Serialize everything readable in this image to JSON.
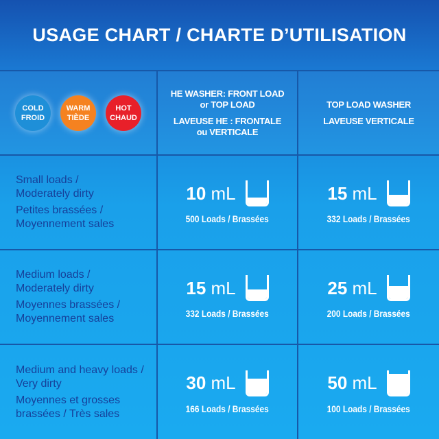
{
  "title": "USAGE CHART  /  CHARTE D’UTILISATION",
  "temperatures": [
    {
      "en": "COLD",
      "fr": "FROID",
      "color": "#1e8fd8"
    },
    {
      "en": "WARM",
      "fr": "TIÈDE",
      "color": "#f58220"
    },
    {
      "en": "HOT",
      "fr": "CHAUD",
      "color": "#e8202a"
    }
  ],
  "columns": [
    {
      "en1": "HE WASHER: FRONT LOAD",
      "en2": "or TOP LOAD",
      "fr1": "LAVEUSE HE : FRONTALE",
      "fr2": "ou VERTICALE"
    },
    {
      "en1": "TOP LOAD WASHER",
      "en2": "",
      "fr1": "LAVEUSE VERTICALE",
      "fr2": ""
    }
  ],
  "rows": [
    {
      "en1": "Small loads /",
      "en2": "Moderately dirty",
      "fr1": "Petites brassées /",
      "fr2": "Moyennement sales",
      "doses": [
        {
          "amount": "10",
          "unit": "mL",
          "loads": "500 Loads / Brassées",
          "fill": 0.3
        },
        {
          "amount": "15",
          "unit": "mL",
          "loads": "332 Loads / Brassées",
          "fill": 0.4
        }
      ]
    },
    {
      "en1": "Medium loads /",
      "en2": "Moderately dirty",
      "fr1": "Moyennes brassées /",
      "fr2": "Moyennement sales",
      "doses": [
        {
          "amount": "15",
          "unit": "mL",
          "loads": "332 Loads / Brassées",
          "fill": 0.4
        },
        {
          "amount": "25",
          "unit": "mL",
          "loads": "200 Loads / Brassées",
          "fill": 0.55
        }
      ]
    },
    {
      "en1": "Medium and heavy loads /",
      "en2": "Very dirty",
      "fr1": "Moyennes et grosses",
      "fr2": "brassées / Très sales",
      "doses": [
        {
          "amount": "30",
          "unit": "mL",
          "loads": "166 Loads / Brassées",
          "fill": 0.65
        },
        {
          "amount": "50",
          "unit": "mL",
          "loads": "100 Loads / Brassées",
          "fill": 0.85
        }
      ]
    }
  ]
}
